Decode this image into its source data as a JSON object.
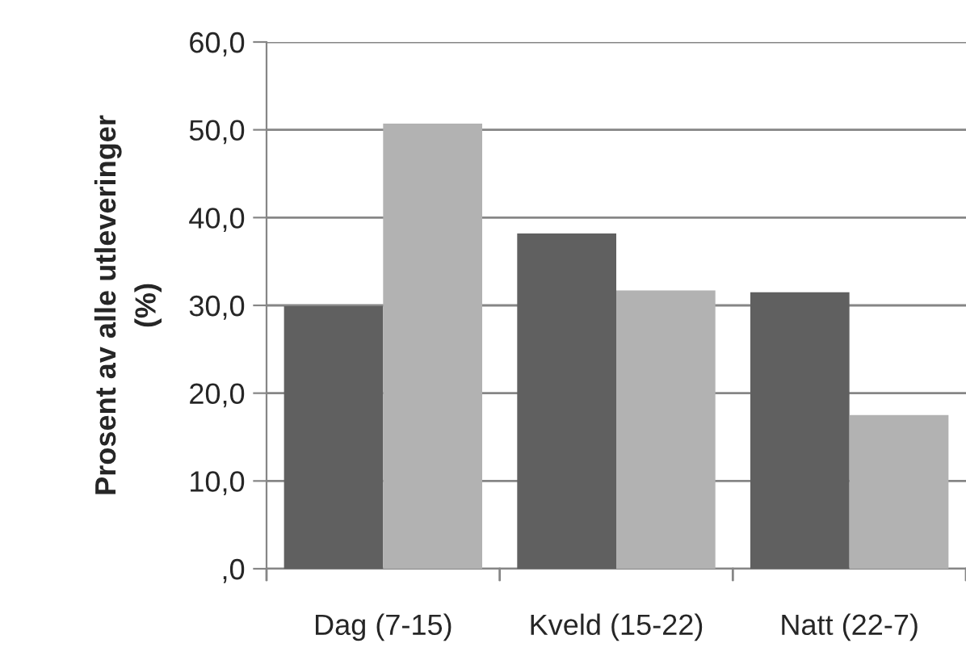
{
  "chart_data": {
    "type": "bar",
    "ylabel": "Prosent av alle utleveringer\n(%)",
    "categories": [
      "Dag (7-15)",
      "Kveld (15-22)",
      "Natt (22-7)"
    ],
    "series": [
      {
        "color": "#606060",
        "values": [
          29.9,
          38.2,
          31.5
        ]
      },
      {
        "color": "#b2b2b2",
        "values": [
          50.7,
          31.7,
          17.5
        ]
      }
    ],
    "ylim": [
      0,
      60
    ],
    "yticks": [
      {
        "value": 0,
        "label": ",0"
      },
      {
        "value": 10,
        "label": "10,0"
      },
      {
        "value": 20,
        "label": "20,0"
      },
      {
        "value": 30,
        "label": "30,0"
      },
      {
        "value": 40,
        "label": "40,0"
      },
      {
        "value": 50,
        "label": "50,0"
      },
      {
        "value": 60,
        "label": "60,0"
      }
    ],
    "grid": "y",
    "legend": false
  }
}
